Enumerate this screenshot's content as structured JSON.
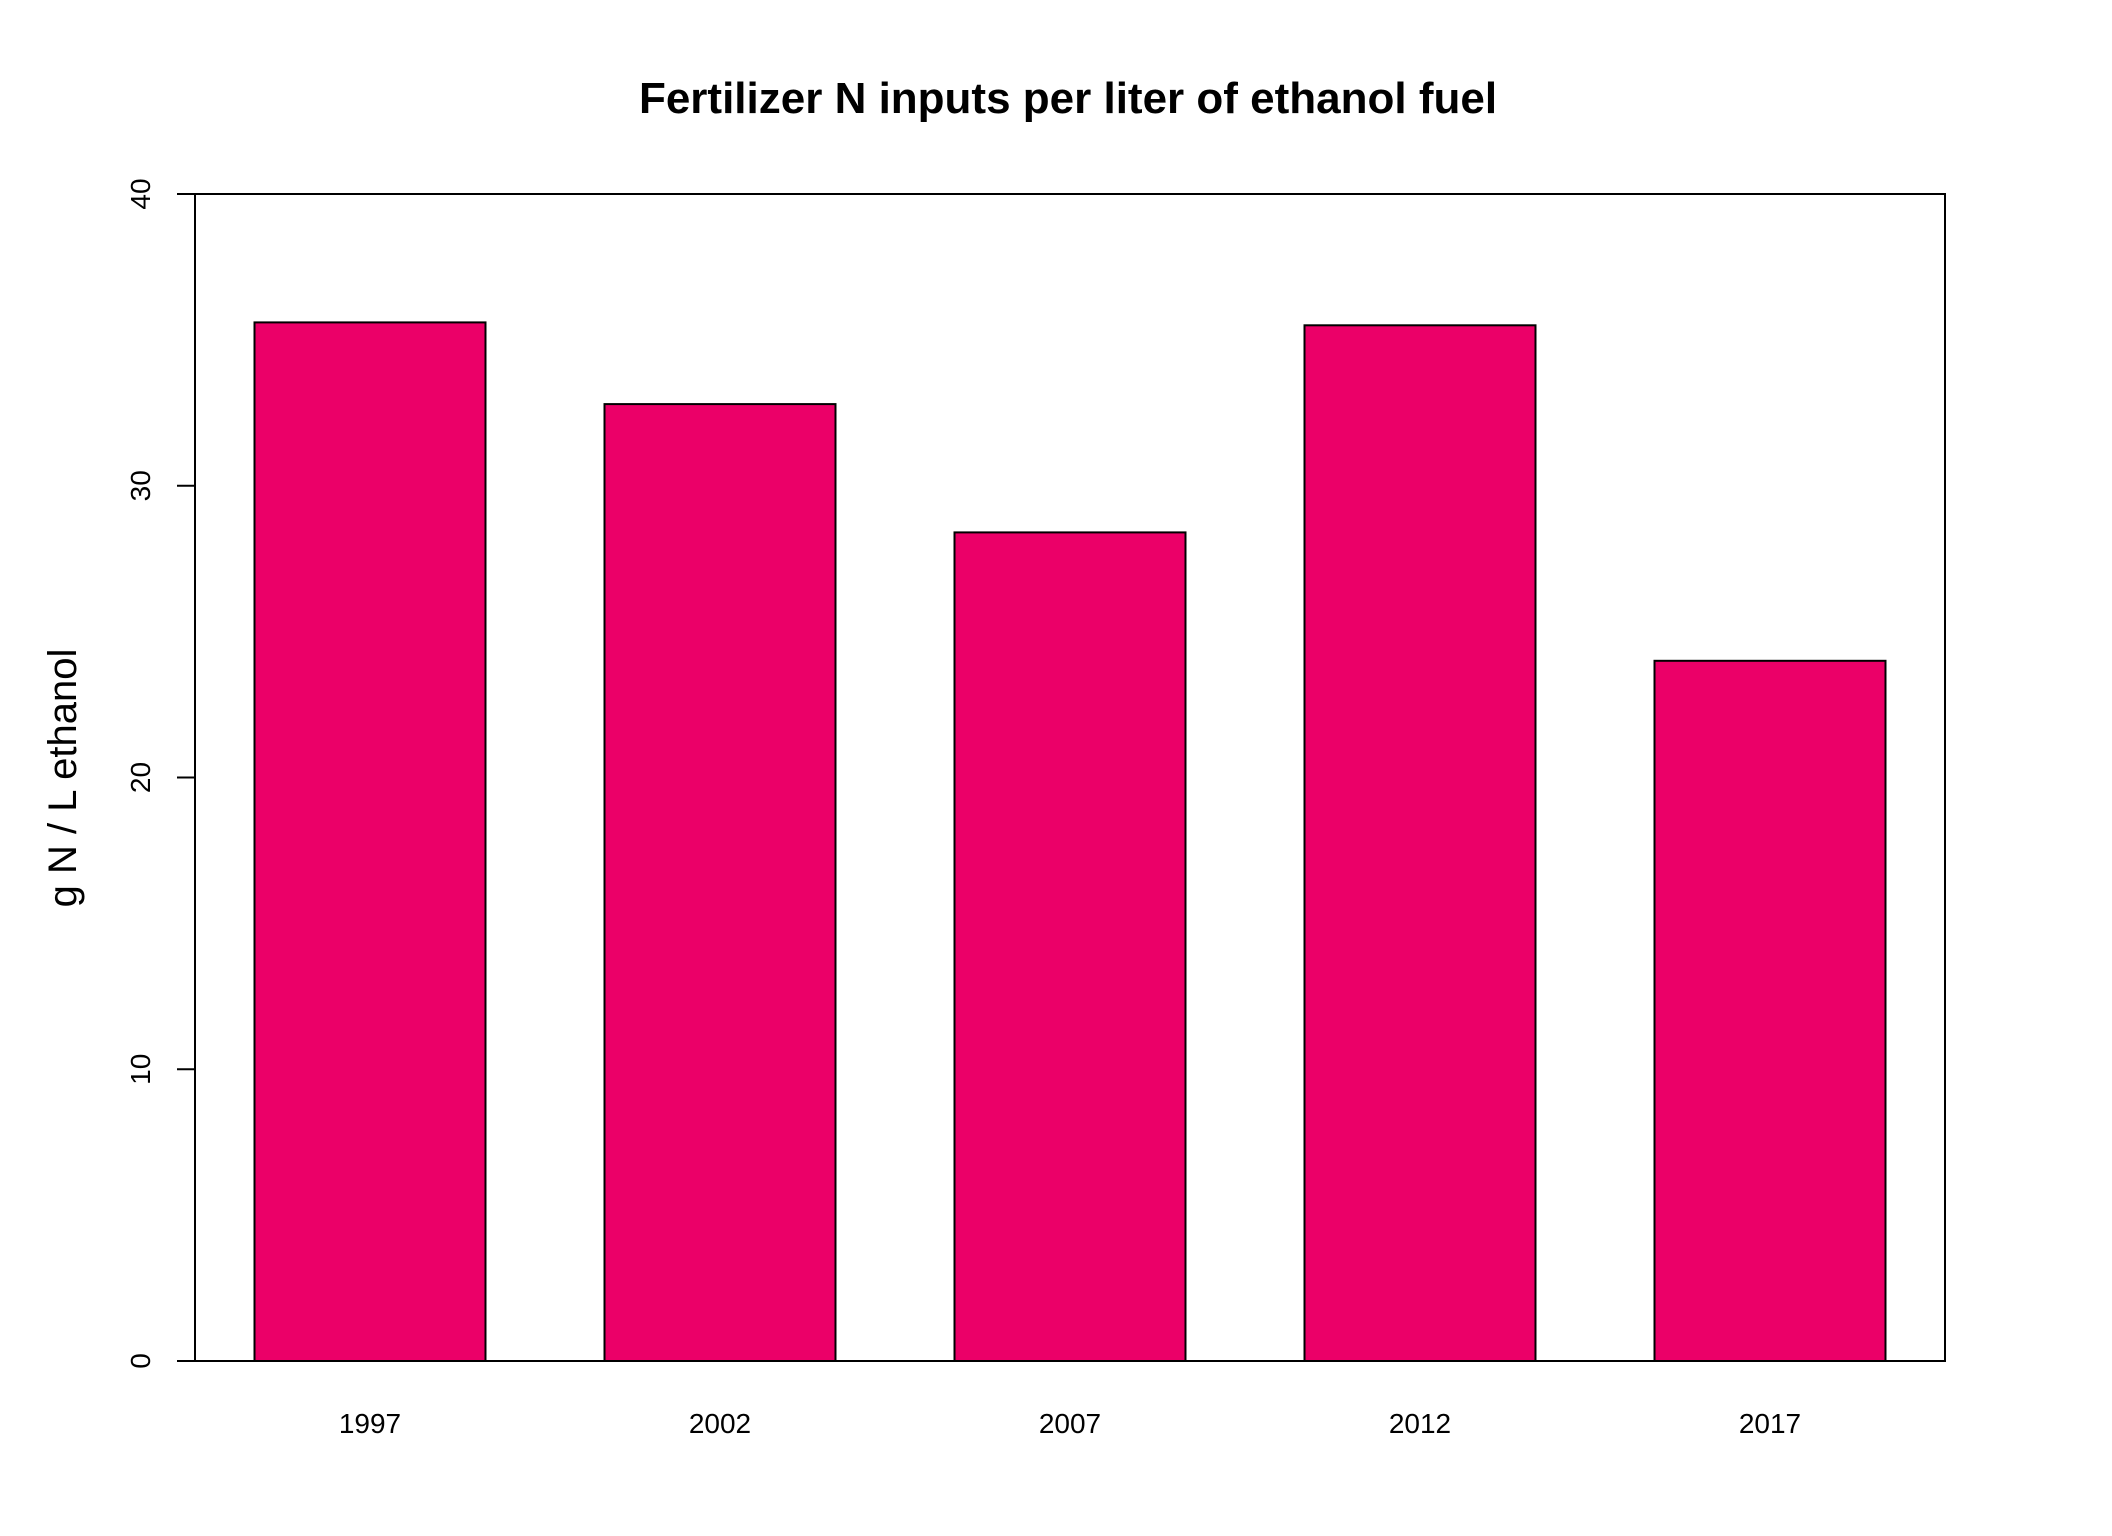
{
  "chart_data": {
    "type": "bar",
    "title": "Fertilizer N inputs per liter of ethanol fuel",
    "xlabel": "",
    "ylabel": "g N / L ethanol",
    "categories": [
      "1997",
      "2002",
      "2007",
      "2012",
      "2017"
    ],
    "values": [
      35.6,
      32.8,
      28.4,
      35.5,
      24.0
    ],
    "ylim": [
      0,
      40
    ],
    "yticks": [
      "0",
      "10",
      "20",
      "30",
      "40"
    ],
    "grid": false,
    "legend": "none",
    "bar_color": "#EB0068"
  }
}
